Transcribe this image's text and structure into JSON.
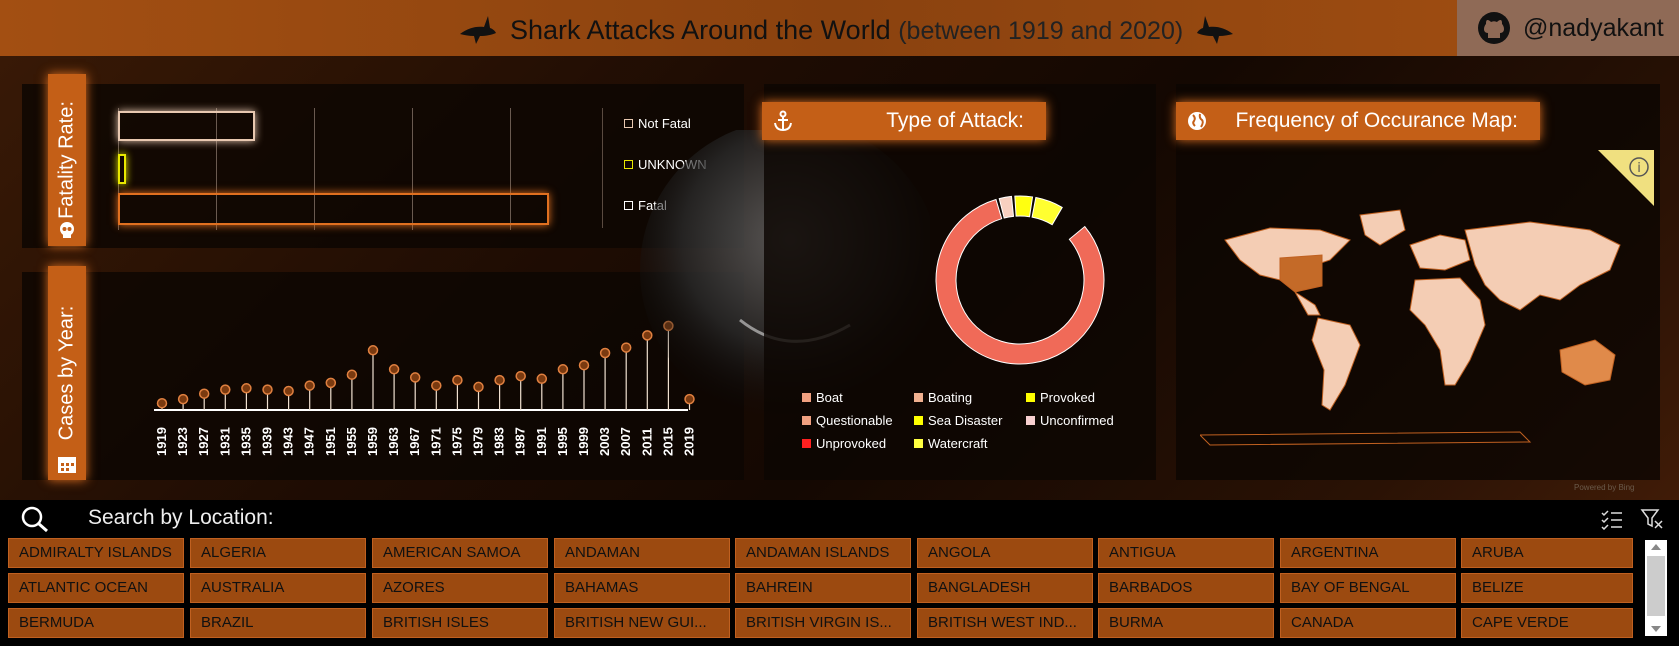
{
  "header": {
    "title": "Shark Attacks Around the World",
    "subtitle": "(between 1919 and 2020)",
    "github_handle": "@nadyakant"
  },
  "fatality": {
    "label": "Fatality Rate:",
    "legend": [
      {
        "name": "Not Fatal",
        "color": "#e8c8b0"
      },
      {
        "name": "UNKNOWN",
        "color": "#e8e800"
      },
      {
        "name": "Fatal",
        "color": "#ffffff"
      }
    ]
  },
  "cases_by_year": {
    "label": "Cases by Year:"
  },
  "type_of_attack": {
    "label": "Type of Attack:",
    "legend": [
      {
        "name": "Boat",
        "color": "#f0a080"
      },
      {
        "name": "Boating",
        "color": "#f0b090"
      },
      {
        "name": "Provoked",
        "color": "#ffff00"
      },
      {
        "name": "Questionable",
        "color": "#f0a080"
      },
      {
        "name": "Sea Disaster",
        "color": "#ffff00"
      },
      {
        "name": "Unconfirmed",
        "color": "#f8d0d0"
      },
      {
        "name": "Unprovoked",
        "color": "#ff2020"
      },
      {
        "name": "Watercraft",
        "color": "#ffff40"
      }
    ]
  },
  "map": {
    "label": "Frequency of Occurance Map:",
    "powered_by": "Powered by Bing"
  },
  "search": {
    "label": "Search by Location:",
    "tiles": [
      "ADMIRALTY ISLANDS",
      "ALGERIA",
      "AMERICAN SAMOA",
      "ANDAMAN",
      "ANDAMAN ISLANDS",
      "ANGOLA",
      "ANTIGUA",
      "ARGENTINA",
      "ARUBA",
      "ATLANTIC OCEAN",
      "AUSTRALIA",
      "AZORES",
      "BAHAMAS",
      "BAHREIN",
      "BANGLADESH",
      "BARBADOS",
      "BAY OF BENGAL",
      "BELIZE",
      "BERMUDA",
      "BRAZIL",
      "BRITISH ISLES",
      "BRITISH NEW GUI...",
      "BRITISH VIRGIN IS...",
      "BRITISH WEST IND...",
      "BURMA",
      "CANADA",
      "CAPE VERDE"
    ]
  },
  "chart_data": [
    {
      "type": "bar",
      "orientation": "horizontal",
      "categories": [
        "Not Fatal",
        "UNKNOWN",
        "Fatal"
      ],
      "values": [
        1.4,
        0.08,
        4.4
      ],
      "colors": [
        "#e8c8b0",
        "#e8e800",
        "#e07020"
      ]
    },
    {
      "type": "line",
      "x": [
        "1919",
        "1923",
        "1927",
        "1931",
        "1935",
        "1939",
        "1943",
        "1947",
        "1951",
        "1955",
        "1959",
        "1963",
        "1967",
        "1971",
        "1975",
        "1979",
        "1983",
        "1987",
        "1991",
        "1995",
        "1999",
        "2003",
        "2007",
        "2011",
        "2015",
        "2019"
      ],
      "values": [
        5,
        8,
        12,
        15,
        16,
        15,
        14,
        18,
        20,
        26,
        44,
        30,
        24,
        18,
        22,
        17,
        22,
        25,
        23,
        30,
        33,
        42,
        46,
        55,
        62,
        8
      ]
    },
    {
      "type": "pie",
      "categories": [
        "Unprovoked",
        "Provoked",
        "Boating",
        "Sea Disaster",
        "Questionable"
      ],
      "values": [
        82,
        4,
        3,
        6,
        5
      ]
    }
  ]
}
